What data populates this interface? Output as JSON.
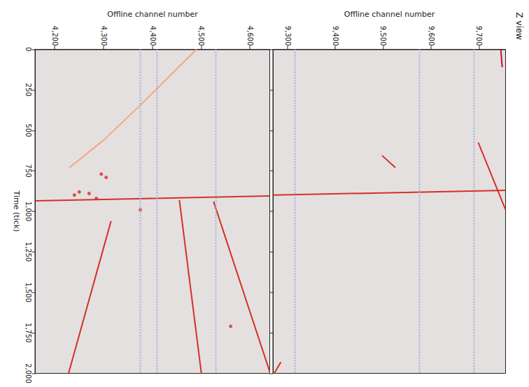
{
  "chart_data": [
    {
      "type": "line",
      "title": "Z view",
      "ylabel": "Offline channel number",
      "xlim": [
        0,
        2000
      ],
      "xticks": [
        0,
        250,
        500,
        750,
        1000,
        1250,
        1500,
        1750,
        2000
      ],
      "ylim": [
        9270,
        9755
      ],
      "yticks": [
        9300,
        9400,
        9500,
        9600,
        9700
      ],
      "tick_labels": "y",
      "dead_channels": [
        9315,
        9575,
        9690
      ],
      "series": [
        {
          "type": "line",
          "color": "#d62f26",
          "x": [
            900,
            870
          ],
          "values": [
            9270,
            9755
          ]
        },
        {
          "type": "line",
          "color": "#d62f26",
          "x": [
            575,
            990
          ],
          "values": [
            9698,
            9755
          ]
        },
        {
          "type": "line",
          "color": "#d62f26",
          "x": [
            655,
            730
          ],
          "values": [
            9497,
            9525
          ]
        },
        {
          "type": "line",
          "color": "#d62f26",
          "x": [
            1930,
            2000
          ],
          "values": [
            9286,
            9272
          ]
        },
        {
          "type": "line",
          "color": "#c8102e",
          "x": [
            0,
            110
          ],
          "values": [
            9745,
            9748
          ]
        }
      ]
    },
    {
      "type": "line",
      "xlabel": "Time (tick)",
      "ylabel": "Offline channel number",
      "xlim": [
        0,
        2000
      ],
      "xticks": [
        0,
        250,
        500,
        750,
        1000,
        1250,
        1500,
        1750,
        2000
      ],
      "ylim": [
        4160,
        4640
      ],
      "yticks": [
        4200,
        4300,
        4400,
        4500,
        4600
      ],
      "tick_labels": true,
      "dead_channels": [
        4375,
        4410,
        4530
      ],
      "series": [
        {
          "type": "line",
          "color": "#d62f26",
          "x": [
            935,
            905
          ],
          "values": [
            4160,
            4640
          ]
        },
        {
          "type": "line",
          "color": "#f4a582",
          "x": [
            0,
            150,
            330,
            560,
            730
          ],
          "values": [
            4490,
            4440,
            4380,
            4300,
            4230
          ]
        },
        {
          "type": "line",
          "color": "#d62f26",
          "x": [
            1060,
            2000
          ],
          "values": [
            4315,
            4228
          ]
        },
        {
          "type": "line",
          "color": "#d62f26",
          "x": [
            930,
            2000
          ],
          "values": [
            4455,
            4500
          ]
        },
        {
          "type": "line",
          "color": "#d62f26",
          "x": [
            940,
            1990
          ],
          "values": [
            4525,
            4640
          ]
        },
        {
          "type": "scatter",
          "marker": "circle",
          "color": "#d62f26",
          "x": [
            770,
            790,
            880,
            900,
            890,
            920,
            990,
            1710
          ],
          "values": [
            4295,
            4305,
            4250,
            4240,
            4270,
            4285,
            4375,
            4560
          ]
        }
      ]
    }
  ]
}
